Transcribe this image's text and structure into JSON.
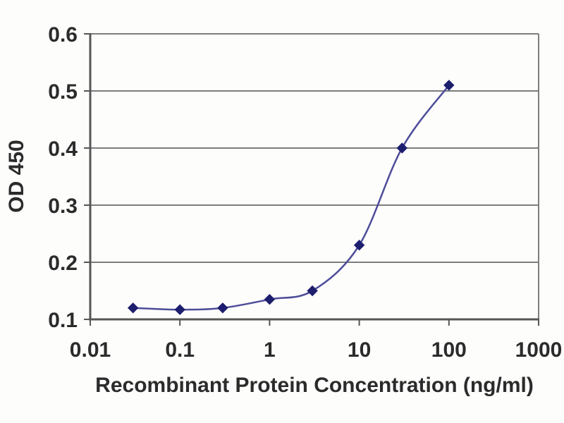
{
  "chart_data": {
    "type": "line",
    "title": "",
    "xlabel": "Recombinant Protein Concentration (ng/ml)",
    "ylabel": "OD 450",
    "x_scale": "log",
    "y_scale": "linear",
    "x": [
      0.03,
      0.1,
      0.3,
      1,
      3,
      10,
      30,
      100
    ],
    "y": [
      0.12,
      0.117,
      0.12,
      0.135,
      0.15,
      0.23,
      0.4,
      0.51
    ],
    "series": [
      {
        "name": "OD 450",
        "x": [
          0.03,
          0.1,
          0.3,
          1,
          3,
          10,
          30,
          100
        ],
        "values": [
          0.12,
          0.117,
          0.12,
          0.135,
          0.15,
          0.23,
          0.4,
          0.51
        ]
      }
    ],
    "xlim": [
      0.01,
      1000
    ],
    "ylim": [
      0.1,
      0.6
    ],
    "x_ticks": [
      0.01,
      0.1,
      1,
      10,
      100,
      1000
    ],
    "x_tick_labels": [
      "0.01",
      "0.1",
      "1",
      "10",
      "100",
      "1000"
    ],
    "y_ticks": [
      0.1,
      0.2,
      0.3,
      0.4,
      0.5,
      0.6
    ],
    "y_tick_labels": [
      "0.1",
      "0.2",
      "0.3",
      "0.4",
      "0.5",
      "0.6"
    ],
    "grid": "horizontal-only",
    "legend": "none",
    "marker": "diamond",
    "line_style": "smooth",
    "colors": {
      "line": "#4d4d99",
      "marker": "#1e1e6e",
      "grid": "#7d7d7d",
      "axis": "#565656",
      "text": "#2b2b2b",
      "background": "#fdfdfc"
    }
  }
}
